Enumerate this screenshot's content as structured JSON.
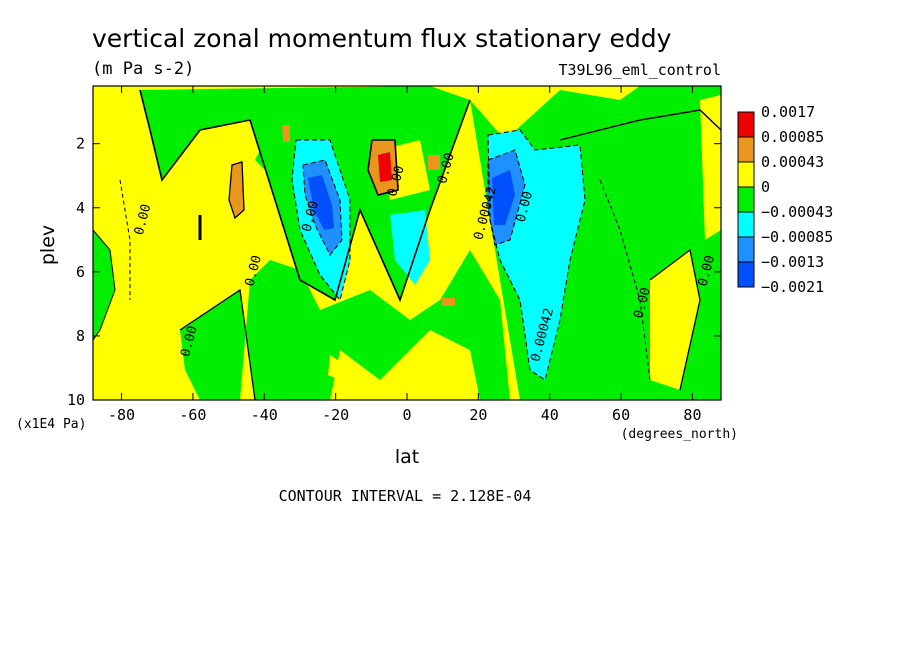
{
  "chart_data": {
    "type": "heatmap",
    "title": "vertical zonal momentum flux stationary eddy",
    "units": "(m Pa s-2)",
    "dataset": "T39L96_eml_control",
    "xlabel": "lat",
    "xunits": "(degrees_north)",
    "ylabel": "plev",
    "yunits": "(x1E4 Pa)",
    "xlim": [
      -88,
      88
    ],
    "ylim": [
      10,
      0.2
    ],
    "xticks": [
      -80,
      -60,
      -40,
      -20,
      0,
      20,
      40,
      60,
      80
    ],
    "yticks": [
      2,
      4,
      6,
      8,
      10
    ],
    "contour_interval_text": "CONTOUR INTERVAL = 2.128E-04",
    "legend": {
      "placement": "right",
      "levels": [
        "0.0017",
        "0.00085",
        "0.00043",
        "0",
        "−0.00043",
        "−0.00085",
        "−0.0013",
        "−0.0021"
      ],
      "colors": [
        "#ee0000",
        "#e8961e",
        "#ffff00",
        "#00ee00",
        "#00ffff",
        "#1e90ff",
        "#0050ff"
      ]
    },
    "contour_labels": [
      {
        "text": "0.00",
        "lat": -73,
        "plev": 4.4
      },
      {
        "text": "0.00",
        "lat": -60,
        "plev": 8.2
      },
      {
        "text": "0.00",
        "lat": -42,
        "plev": 6.0
      },
      {
        "text": "0.00",
        "lat": -26,
        "plev": 4.3
      },
      {
        "text": "0.00",
        "lat": -2,
        "plev": 3.2
      },
      {
        "text": "0.00",
        "lat": 12,
        "plev": 2.8
      },
      {
        "text": "0.00042",
        "lat": 23,
        "plev": 4.2
      },
      {
        "text": "0.00",
        "lat": 34,
        "plev": 4.0
      },
      {
        "text": "0.00042",
        "lat": 39,
        "plev": 8.0
      },
      {
        "text": "0.00",
        "lat": 67,
        "plev": 7.0
      },
      {
        "text": "0.00",
        "lat": 85,
        "plev": 6.0
      }
    ],
    "features": [
      {
        "value": 0.0017,
        "lat": -6,
        "plev": 2.8
      },
      {
        "value": -0.0021,
        "lat": -26,
        "plev": 3.8
      },
      {
        "value": -0.0021,
        "lat": 25,
        "plev": 4.0
      },
      {
        "value": -0.00085,
        "lat": 38,
        "plev": 5.5
      },
      {
        "value": -0.00085,
        "lat": 4,
        "plev": 5.2
      },
      {
        "value": 0.00043,
        "lat": -47,
        "plev": 3.8
      },
      {
        "value": 0.00043,
        "lat": 9,
        "plev": 2.8
      }
    ]
  }
}
